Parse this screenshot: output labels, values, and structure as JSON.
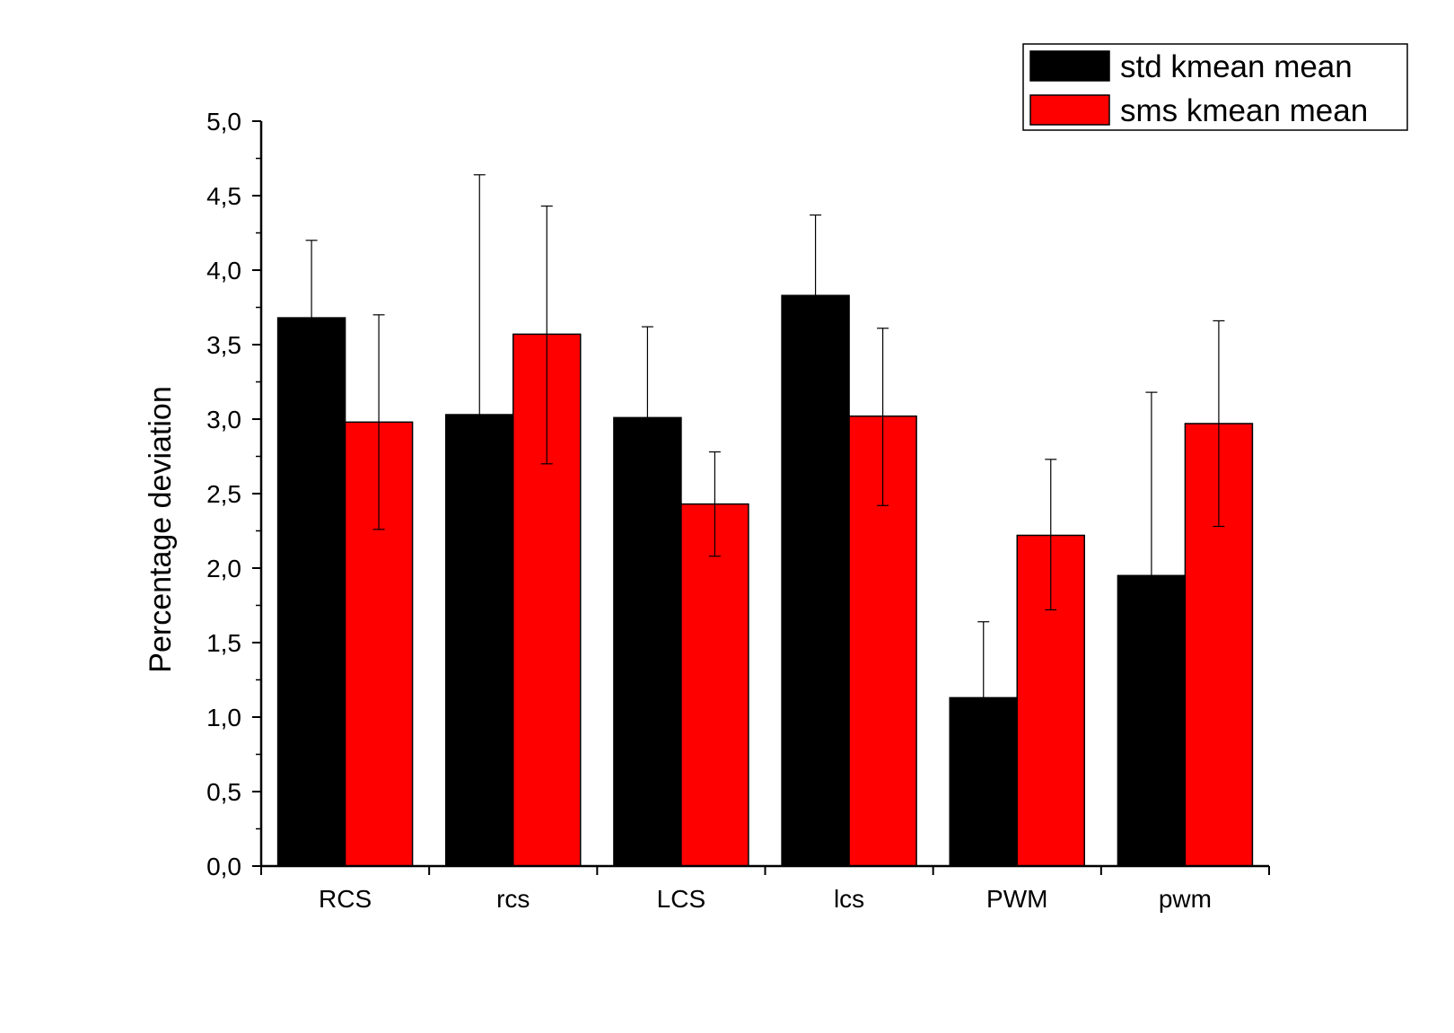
{
  "chart_data": {
    "type": "bar",
    "title": "",
    "xlabel": "",
    "ylabel": "Percentage deviation",
    "ylim": [
      0,
      5
    ],
    "yticks": [
      "0,0",
      "0,5",
      "1,0",
      "1,5",
      "2,0",
      "2,5",
      "3,0",
      "3,5",
      "4,0",
      "4,5",
      "5,0"
    ],
    "categories": [
      "RCS",
      "rcs",
      "LCS",
      "lcs",
      "PWM",
      "pwm"
    ],
    "series": [
      {
        "name": "std kmean mean",
        "color": "#000000",
        "values": [
          3.68,
          3.03,
          3.01,
          3.83,
          1.13,
          1.95
        ],
        "error_upper": [
          0.52,
          1.61,
          0.61,
          0.54,
          0.51,
          1.23
        ],
        "error_lower": [
          0,
          0,
          0,
          0,
          0,
          0
        ]
      },
      {
        "name": "sms kmean mean",
        "color": "#ff0000",
        "values": [
          2.98,
          3.57,
          2.43,
          3.02,
          2.22,
          2.97
        ],
        "error_upper": [
          0.72,
          0.86,
          0.35,
          0.59,
          0.51,
          0.69
        ],
        "error_lower": [
          0.72,
          0.87,
          0.35,
          0.6,
          0.5,
          0.69
        ]
      }
    ],
    "legend_position": "top-right",
    "grid": false
  }
}
